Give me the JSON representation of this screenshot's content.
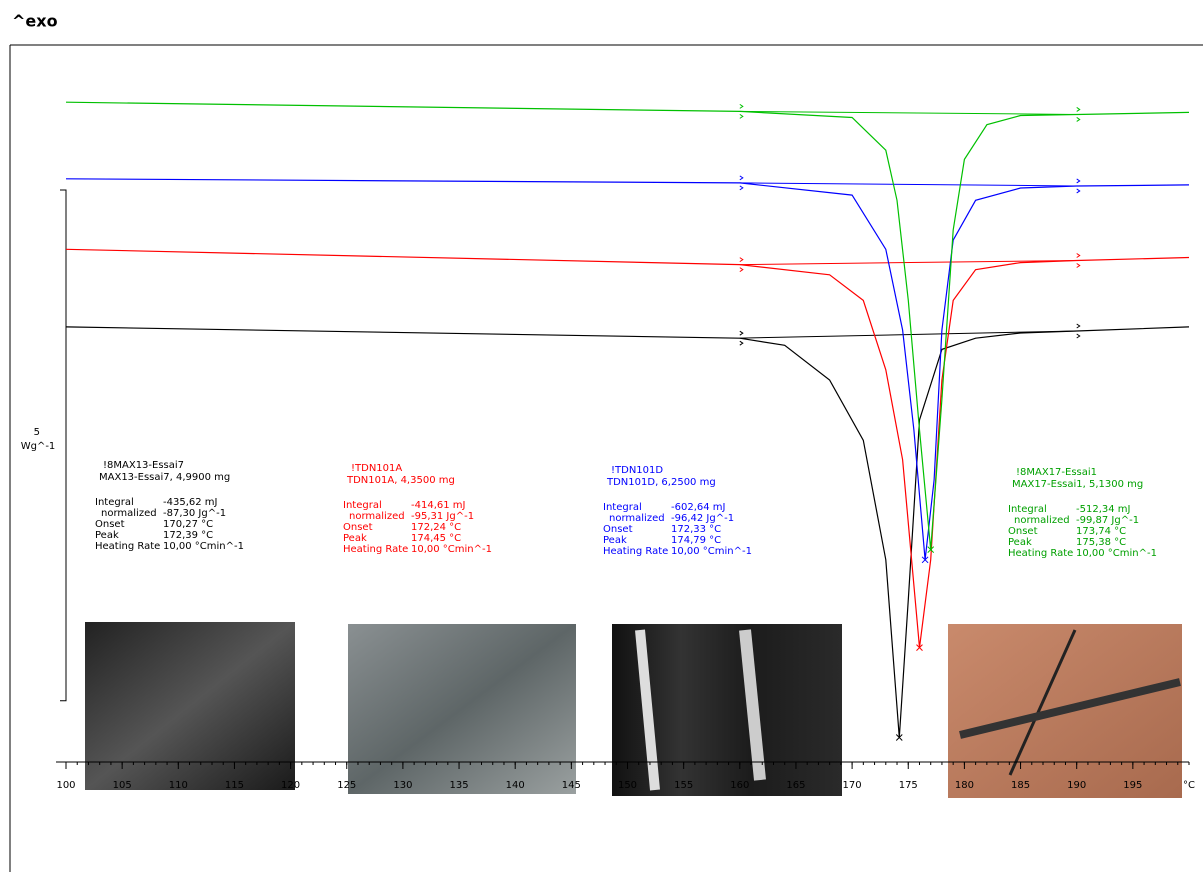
{
  "chart_data": {
    "type": "line",
    "title": "^exo",
    "x_unit": "°C",
    "xlim": [
      100,
      200
    ],
    "xticks": [
      100,
      105,
      110,
      115,
      120,
      125,
      130,
      135,
      140,
      145,
      150,
      155,
      160,
      165,
      170,
      175,
      180,
      185,
      190,
      195
    ],
    "ylim": [
      0,
      7
    ],
    "scale_bar": {
      "value": 5,
      "label": "Wg^-1"
    },
    "series": [
      {
        "name": "!8MAX13-Essai7",
        "color": "#000000",
        "x": [
          100,
          160,
          164,
          168,
          171,
          173,
          174.2,
          175,
          176,
          178,
          181,
          185,
          190,
          200
        ],
        "values": [
          4.24,
          4.13,
          4.06,
          3.72,
          3.13,
          1.96,
          0.22,
          1.57,
          3.33,
          4.02,
          4.13,
          4.18,
          4.2,
          4.24
        ]
      },
      {
        "name": "!TDN101A",
        "color": "#ff0000",
        "x": [
          100,
          160,
          168,
          171,
          173,
          174.5,
          175.3,
          176,
          177,
          178,
          179,
          181,
          185,
          190,
          200
        ],
        "values": [
          5.0,
          4.85,
          4.75,
          4.5,
          3.82,
          2.94,
          1.96,
          1.1,
          1.96,
          3.72,
          4.5,
          4.8,
          4.87,
          4.89,
          4.92
        ]
      },
      {
        "name": "!TDN101D",
        "color": "#0000ff",
        "x": [
          100,
          160,
          170,
          173,
          174.5,
          175.5,
          176.5,
          177.3,
          178,
          179,
          181,
          185,
          190,
          200
        ],
        "values": [
          5.69,
          5.65,
          5.53,
          5.0,
          4.21,
          3.23,
          1.96,
          2.74,
          4.21,
          5.09,
          5.48,
          5.6,
          5.62,
          5.63
        ]
      },
      {
        "name": "!8MAX17-Essai1",
        "color": "#00c000",
        "x": [
          100,
          160,
          170,
          173,
          174,
          175,
          176,
          177,
          178,
          179,
          180,
          182,
          185,
          190,
          200
        ],
        "values": [
          6.44,
          6.35,
          6.29,
          5.97,
          5.48,
          4.5,
          3.23,
          2.06,
          3.53,
          5.19,
          5.88,
          6.22,
          6.31,
          6.32,
          6.34
        ]
      }
    ],
    "annotations": [
      {
        "lines": [
          "!8MAX13-Essai7",
          "MAX13-Essai7, 4,9900 mg"
        ],
        "rows": [
          [
            "Integral",
            "-435,62 mJ"
          ],
          [
            "normalized",
            "-87,30 Jg^-1"
          ],
          [
            "Onset",
            "170,27 °C"
          ],
          [
            "Peak",
            "172,39 °C"
          ],
          [
            "Heating Rate",
            "10,00 °Cmin^-1"
          ]
        ],
        "color": "#000000"
      },
      {
        "lines": [
          "!TDN101A",
          "TDN101A, 4,3500 mg"
        ],
        "rows": [
          [
            "Integral",
            "-414,61 mJ"
          ],
          [
            "normalized",
            "-95,31 Jg^-1"
          ],
          [
            "Onset",
            "172,24 °C"
          ],
          [
            "Peak",
            "174,45 °C"
          ],
          [
            "Heating Rate",
            "10,00 °Cmin^-1"
          ]
        ],
        "color": "#ff0000"
      },
      {
        "lines": [
          "!TDN101D",
          "TDN101D, 6,2500 mg"
        ],
        "rows": [
          [
            "Integral",
            "-602,64 mJ"
          ],
          [
            "normalized",
            "-96,42 Jg^-1"
          ],
          [
            "Onset",
            "172,33 °C"
          ],
          [
            "Peak",
            "174,79 °C"
          ],
          [
            "Heating Rate",
            "10,00 °Cmin^-1"
          ]
        ],
        "color": "#0000ff"
      },
      {
        "lines": [
          "!8MAX17-Essai1",
          "MAX17-Essai1, 5,1300 mg"
        ],
        "rows": [
          [
            "Integral",
            "-512,34 mJ"
          ],
          [
            "normalized",
            "-99,87 Jg^-1"
          ],
          [
            "Onset",
            "173,74 °C"
          ],
          [
            "Peak",
            "175,38 °C"
          ],
          [
            "Heating Rate",
            "10,00 °Cmin^-1"
          ]
        ],
        "color": "#00a000"
      }
    ]
  }
}
